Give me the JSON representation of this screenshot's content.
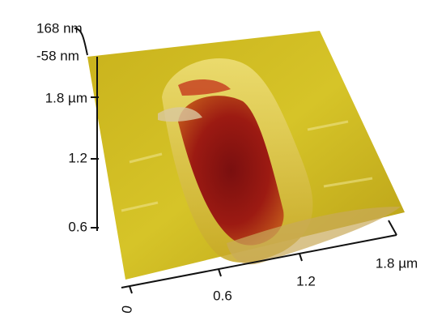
{
  "z_axis": {
    "labels": [
      "168 nm",
      "-58 nm"
    ]
  },
  "y_axis": {
    "labels": [
      "1.8 µm",
      "1.2",
      "0.6"
    ]
  },
  "x_axis": {
    "labels": [
      "0",
      "0.6",
      "1.2",
      "1.8 µm"
    ]
  }
}
